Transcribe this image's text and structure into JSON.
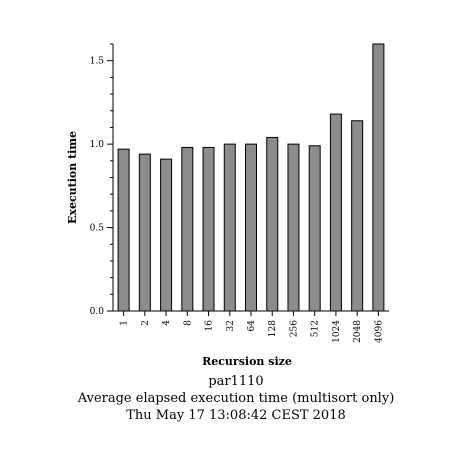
{
  "chart_data": {
    "type": "bar",
    "categories": [
      "1",
      "2",
      "4",
      "8",
      "16",
      "32",
      "64",
      "128",
      "256",
      "512",
      "1024",
      "2048",
      "4096"
    ],
    "values": [
      0.97,
      0.94,
      0.91,
      0.98,
      0.98,
      1.0,
      1.0,
      1.04,
      1.0,
      0.99,
      1.18,
      1.14,
      1.6
    ],
    "xlabel": "Recursion size",
    "ylabel": "Execution time",
    "ylim": [
      0,
      1.6
    ],
    "yticks": [
      "0.0",
      "0.5",
      "1.0",
      "1.5"
    ],
    "ytick_values": [
      0,
      0.5,
      1.0,
      1.5
    ],
    "grid": false,
    "colors": {
      "bar_fill": "#8c8c8c",
      "bar_stroke": "#000000",
      "axis": "#000000"
    }
  },
  "caption": {
    "line1": "par1110",
    "line2": "Average elapsed execution time (multisort only)",
    "line3": "Thu May 17 13:08:42 CEST 2018"
  }
}
